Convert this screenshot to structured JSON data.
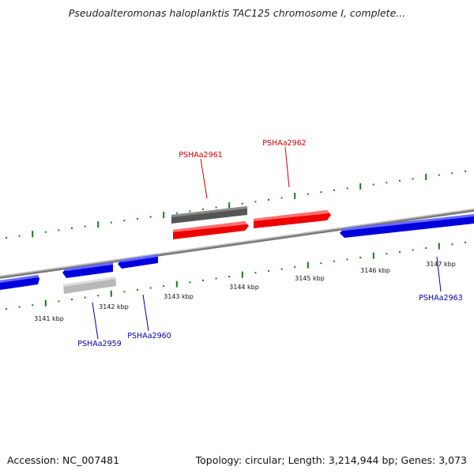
{
  "title": "Pseudoalteromonas haloplanktis TAC125 chromosome I, complete...",
  "footer": {
    "accession": "Accession: NC_007481",
    "summary": "Topology: circular; Length: 3,214,944 bp; Genes: 3,073"
  },
  "colors": {
    "forward_gene": "#ff0000",
    "reverse_gene": "#0000ff",
    "gray_gene_dark": "#666666",
    "gray_gene_light": "#c0c0c0",
    "ticks": "#1a7a1a",
    "backbone": "#888888",
    "forward_label": "#cc0000",
    "reverse_label": "#0000aa"
  },
  "ruler": {
    "ticks": [
      {
        "label": "3141 kbp"
      },
      {
        "label": "3142 kbp"
      },
      {
        "label": "3143 kbp"
      },
      {
        "label": "3144 kbp"
      },
      {
        "label": "3145 kbp"
      },
      {
        "label": "3146 kbp"
      },
      {
        "label": "3147 kbp"
      }
    ]
  },
  "genes": [
    {
      "label": "PSHAa2961",
      "strand": "forward"
    },
    {
      "label": "PSHAa2962",
      "strand": "forward"
    },
    {
      "label": "PSHAa2959",
      "strand": "reverse"
    },
    {
      "label": "PSHAa2960",
      "strand": "reverse"
    },
    {
      "label": "PSHAa2963",
      "strand": "reverse"
    }
  ]
}
